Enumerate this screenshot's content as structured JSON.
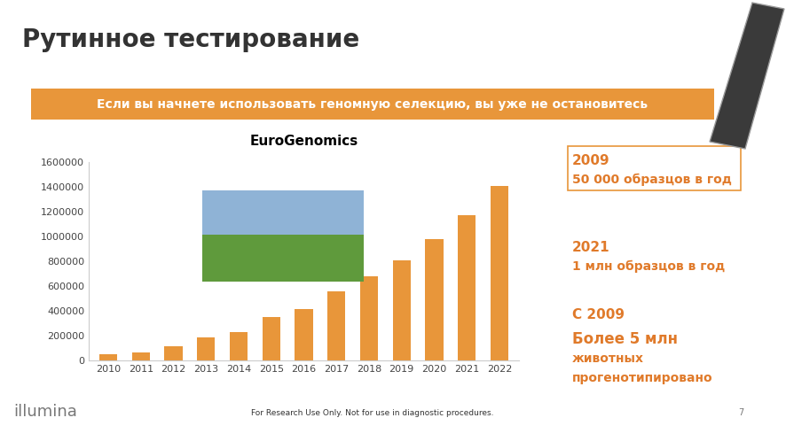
{
  "slide": {
    "title": "Рутинное тестирование",
    "banner": "Если вы начнете использовать геномную селекцию, вы уже не остановитесь",
    "facts": [
      {
        "heading": "2009",
        "lines": [
          "50 000 образцов в год"
        ]
      },
      {
        "heading": "2021",
        "lines": [
          "1 млн образцов в год"
        ]
      },
      {
        "heading": "С 2009",
        "lines": [
          "Более 5 млн",
          "животных",
          "прогенотипировано"
        ]
      }
    ],
    "footer": {
      "logo": "illumina",
      "note": "For Research Use Only. Not for use in diagnostic procedures.",
      "page": "7"
    }
  },
  "chart_data": {
    "type": "bar",
    "title": "EuroGenomics",
    "categories": [
      "2010",
      "2011",
      "2012",
      "2013",
      "2014",
      "2015",
      "2016",
      "2017",
      "2018",
      "2019",
      "2020",
      "2021",
      "2022"
    ],
    "values": [
      50000,
      65000,
      115000,
      185000,
      225000,
      350000,
      415000,
      555000,
      675000,
      810000,
      975000,
      1170000,
      1405000
    ],
    "color": "#e8963a",
    "ylim": [
      0,
      1600000
    ],
    "yticks": [
      0,
      200000,
      400000,
      600000,
      800000,
      1000000,
      1200000,
      1400000,
      1600000
    ],
    "grid": false
  }
}
